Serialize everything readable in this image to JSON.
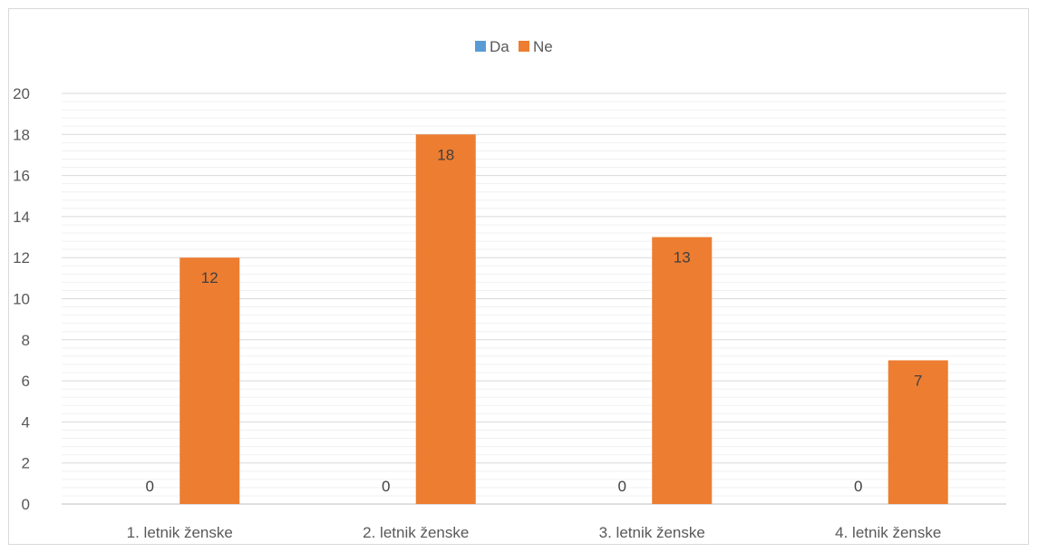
{
  "chart_data": {
    "type": "bar",
    "title": "",
    "xlabel": "",
    "ylabel": "",
    "categories": [
      "1. letnik ženske",
      "2. letnik ženske",
      "3. letnik ženske",
      "4. letnik ženske"
    ],
    "series": [
      {
        "name": "Da",
        "values": [
          0,
          0,
          0,
          0
        ],
        "color": "#5B9BD5"
      },
      {
        "name": "Ne",
        "values": [
          12,
          18,
          13,
          7
        ],
        "color": "#ED7D31"
      }
    ],
    "ylim": [
      0,
      20
    ],
    "yticks": [
      0,
      2,
      4,
      6,
      8,
      10,
      12,
      14,
      16,
      18,
      20
    ],
    "grid": true,
    "legend_position": "top-center",
    "data_labels": true
  }
}
